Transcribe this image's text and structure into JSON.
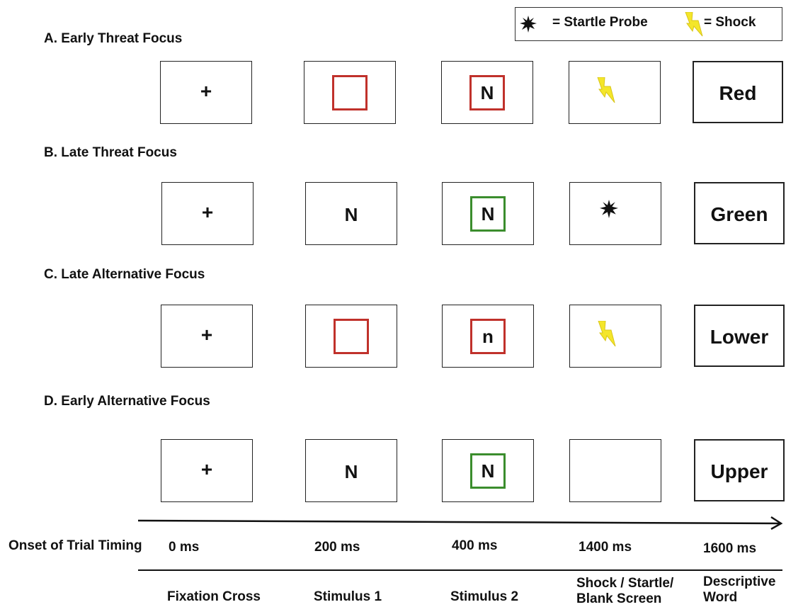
{
  "legend": {
    "startle_label": "= Startle Probe",
    "shock_label": "= Shock",
    "startle_icon": "starburst-icon",
    "shock_icon": "lightning-bolt-icon"
  },
  "colors": {
    "red_box": "#c0312b",
    "green_box": "#3b8d2d",
    "bolt": "#f4e62a"
  },
  "rows": [
    {
      "label": "A. Early Threat Focus",
      "fix": "+",
      "stim1_letter": "",
      "stim1_box": "red",
      "stim2_letter": "N",
      "stim2_box": "red",
      "event": "shock",
      "word": "Red"
    },
    {
      "label": "B. Late Threat Focus",
      "fix": "+",
      "stim1_letter": "N",
      "stim1_box": "none",
      "stim2_letter": "N",
      "stim2_box": "green",
      "event": "startle",
      "word": "Green"
    },
    {
      "label": "C. Late Alternative Focus",
      "fix": "+",
      "stim1_letter": "",
      "stim1_box": "red",
      "stim2_letter": "n",
      "stim2_box": "red",
      "event": "shock",
      "word": "Lower"
    },
    {
      "label": "D. Early Alternative Focus",
      "fix": "+",
      "stim1_letter": "N",
      "stim1_box": "none",
      "stim2_letter": "N",
      "stim2_box": "green",
      "event": "blank",
      "word": "Upper"
    }
  ],
  "timing": {
    "label": "Onset of Trial Timing",
    "times": [
      "0 ms",
      "200 ms",
      "400 ms",
      "1400 ms",
      "1600 ms"
    ]
  },
  "phases": {
    "fixation": "Fixation Cross",
    "stim1": "Stimulus 1",
    "stim2": "Stimulus 2",
    "event_line1": "Shock / Startle/",
    "event_line2": "Blank Screen",
    "word_line1": "Descriptive",
    "word_line2": "Word"
  }
}
